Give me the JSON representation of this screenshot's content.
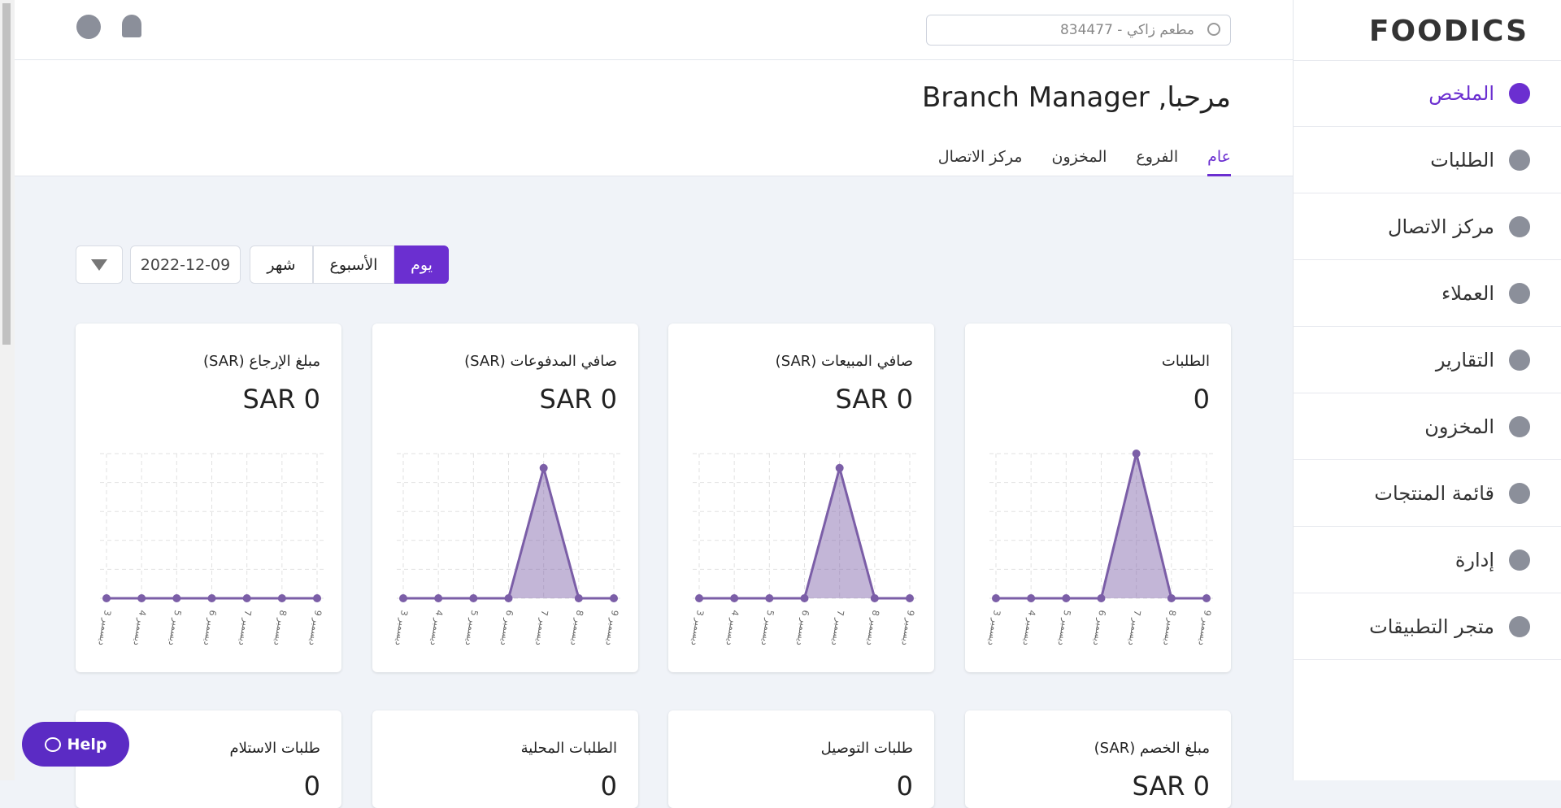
{
  "brand": "FOODICS",
  "header": {
    "search_placeholder": "مطعم زاكي - 834477",
    "greeting": "مرحبا, Branch Manager"
  },
  "tabs": [
    "عام",
    "الفروع",
    "المخزون",
    "مركز الاتصال"
  ],
  "sidebar": [
    "الملخص",
    "الطلبات",
    "مركز الاتصال",
    "العملاء",
    "التقارير",
    "المخزون",
    "قائمة المنتجات",
    "إدارة",
    "متجر التطبيقات"
  ],
  "period_buttons": [
    "يوم",
    "الأسبوع",
    "شهر"
  ],
  "date": "2022-12-09",
  "help": "Help",
  "chart_data": [
    {
      "type": "line",
      "title": "الطلبات",
      "value_text": "0",
      "categories": [
        "3 ديسمبر",
        "4 ديسمبر",
        "5 ديسمبر",
        "6 ديسمبر",
        "7 ديسمبر",
        "8 ديسمبر",
        "9 ديسمبر"
      ],
      "values": [
        0,
        0,
        0,
        0,
        1,
        0,
        0
      ],
      "ylim": [
        0,
        1
      ],
      "color": "#7b5ea7",
      "grid": true
    },
    {
      "type": "line",
      "title": "صافي المبيعات (SAR)",
      "value_text": "SAR 0",
      "categories": [
        "3 ديسمبر",
        "4 ديسمبر",
        "5 ديسمبر",
        "6 ديسمبر",
        "7 ديسمبر",
        "8 ديسمبر",
        "9 ديسمبر"
      ],
      "values": [
        0,
        0,
        0,
        0,
        0.9,
        0,
        0
      ],
      "ylim": [
        0,
        1
      ],
      "color": "#7b5ea7",
      "grid": true
    },
    {
      "type": "line",
      "title": "صافي المدفوعات (SAR)",
      "value_text": "SAR 0",
      "categories": [
        "3 ديسمبر",
        "4 ديسمبر",
        "5 ديسمبر",
        "6 ديسمبر",
        "7 ديسمبر",
        "8 ديسمبر",
        "9 ديسمبر"
      ],
      "values": [
        0,
        0,
        0,
        0,
        0.9,
        0,
        0
      ],
      "ylim": [
        0,
        1
      ],
      "color": "#7b5ea7",
      "grid": true
    },
    {
      "type": "line",
      "title": "مبلغ الإرجاع (SAR)",
      "value_text": "SAR 0",
      "categories": [
        "3 ديسمبر",
        "4 ديسمبر",
        "5 ديسمبر",
        "6 ديسمبر",
        "7 ديسمبر",
        "8 ديسمبر",
        "9 ديسمبر"
      ],
      "values": [
        0,
        0,
        0,
        0,
        0,
        0,
        0
      ],
      "ylim": [
        0,
        1
      ],
      "color": "#7b5ea7",
      "grid": true
    }
  ],
  "bottom_cards": [
    {
      "title": "مبلغ الخصم (SAR)",
      "value_text": "SAR 0"
    },
    {
      "title": "طلبات التوصيل",
      "value_text": "0"
    },
    {
      "title": "الطلبات المحلية",
      "value_text": "0"
    },
    {
      "title": "طلبات الاستلام",
      "value_text": "0"
    }
  ]
}
